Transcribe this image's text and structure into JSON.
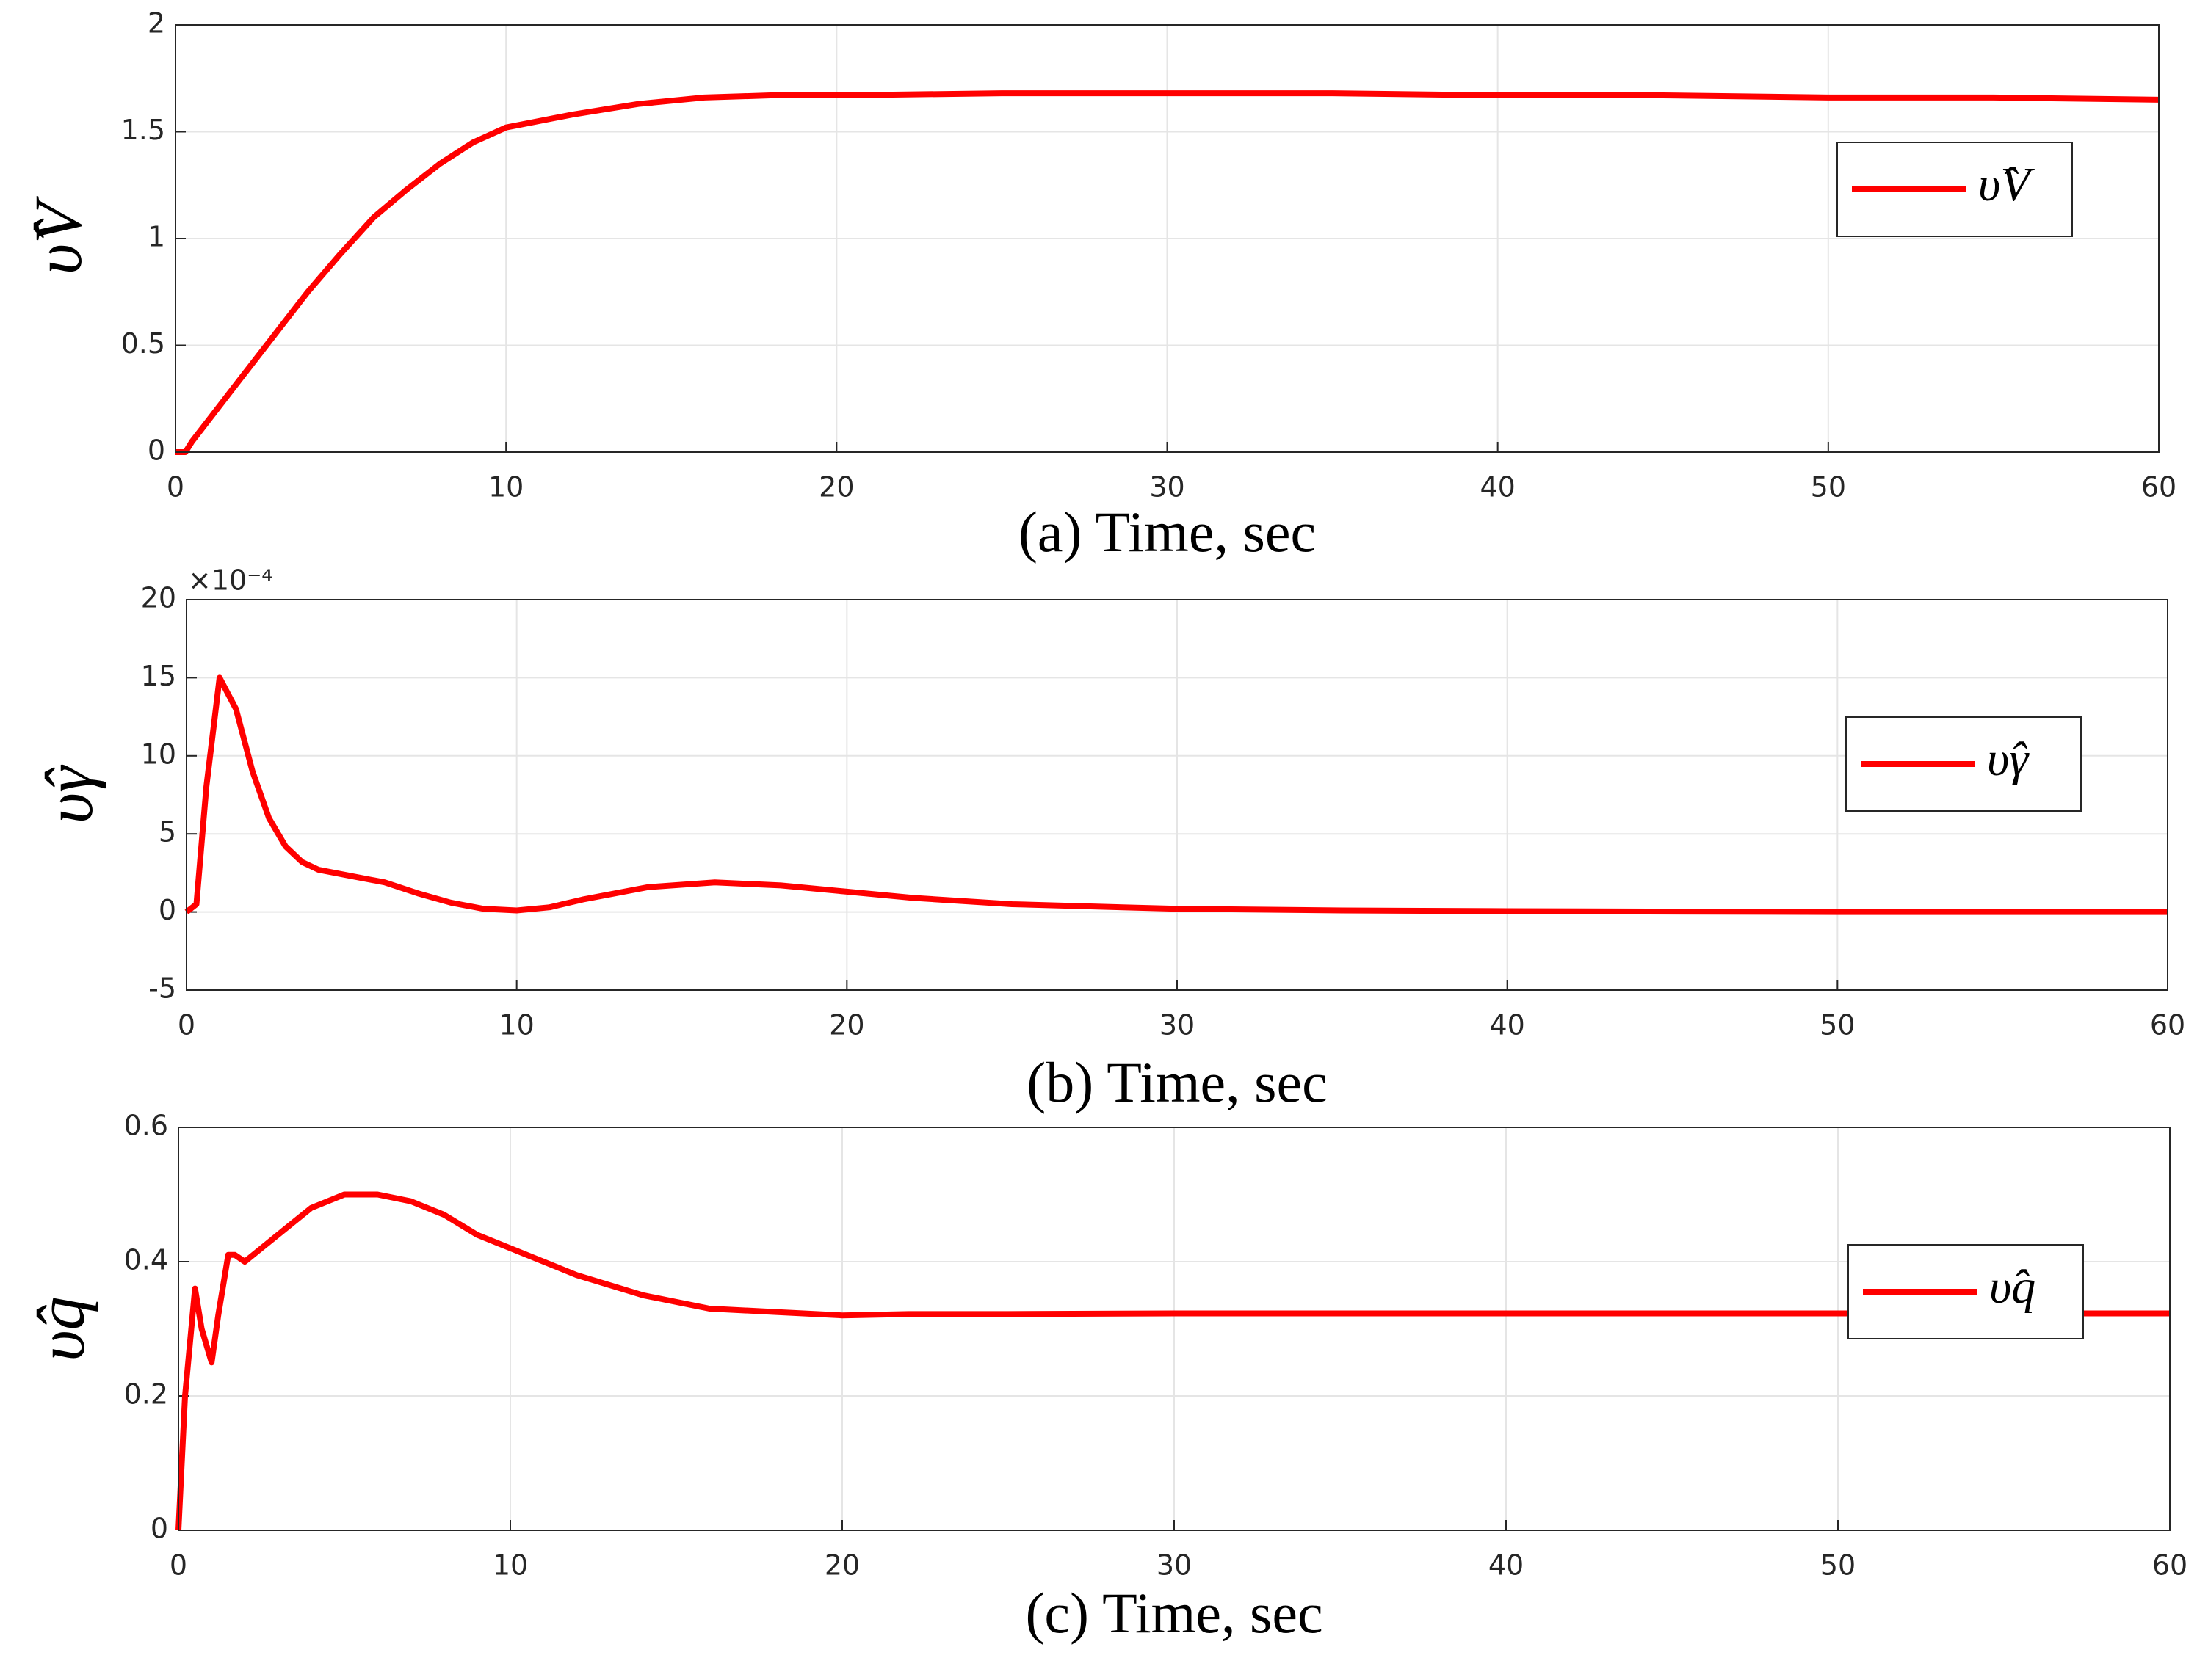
{
  "chart_data": [
    {
      "type": "line",
      "xlabel": "(a) Time, sec",
      "ylabel": "υ̂V",
      "x": [
        0,
        0.3,
        0.5,
        1,
        2,
        3,
        4,
        5,
        6,
        7,
        8,
        9,
        10,
        12,
        14,
        16,
        18,
        20,
        25,
        30,
        35,
        40,
        45,
        50,
        55,
        60
      ],
      "series": [
        {
          "name": "υ̂V",
          "color": "#ff0000",
          "values": [
            0,
            0,
            0.05,
            0.15,
            0.35,
            0.55,
            0.75,
            0.93,
            1.1,
            1.23,
            1.35,
            1.45,
            1.52,
            1.58,
            1.63,
            1.66,
            1.67,
            1.67,
            1.68,
            1.68,
            1.68,
            1.67,
            1.67,
            1.66,
            1.66,
            1.65
          ]
        }
      ],
      "xlim": [
        0,
        60
      ],
      "ylim": [
        0,
        2
      ],
      "xticks": [
        0,
        10,
        20,
        30,
        40,
        50,
        60
      ],
      "yticks": [
        0,
        0.5,
        1,
        1.5,
        2
      ],
      "grid": true,
      "legend": "upper right"
    },
    {
      "type": "line",
      "xlabel": "(b) Time, sec",
      "ylabel": "υ̂γ",
      "exponent": "×10⁻⁴",
      "x": [
        0,
        0.3,
        0.6,
        1,
        1.5,
        2,
        2.5,
        3,
        3.5,
        4,
        5,
        6,
        7,
        8,
        9,
        10,
        11,
        12,
        14,
        16,
        18,
        20,
        22,
        25,
        30,
        35,
        40,
        50,
        60
      ],
      "series": [
        {
          "name": "υ̂γ",
          "color": "#ff0000",
          "values": [
            0,
            0.5,
            8,
            15,
            13,
            9,
            6,
            4.2,
            3.2,
            2.7,
            2.3,
            1.9,
            1.2,
            0.6,
            0.2,
            0.1,
            0.3,
            0.8,
            1.6,
            1.9,
            1.7,
            1.3,
            0.9,
            0.5,
            0.2,
            0.1,
            0.05,
            0,
            0
          ]
        }
      ],
      "xlim": [
        0,
        60
      ],
      "ylim": [
        -5,
        20
      ],
      "xticks": [
        0,
        10,
        20,
        30,
        40,
        50,
        60
      ],
      "yticks": [
        -5,
        0,
        5,
        10,
        15,
        20
      ],
      "grid": true,
      "legend": "upper right"
    },
    {
      "type": "line",
      "xlabel": "(c) Time, sec",
      "ylabel": "υ̂q",
      "x": [
        0,
        0.2,
        0.5,
        0.7,
        1,
        1.2,
        1.5,
        1.7,
        2,
        2.5,
        3,
        4,
        5,
        6,
        7,
        8,
        9,
        10,
        12,
        14,
        16,
        18,
        20,
        22,
        25,
        30,
        40,
        50,
        60
      ],
      "series": [
        {
          "name": "υ̂q",
          "color": "#ff0000",
          "values": [
            0,
            0.2,
            0.36,
            0.3,
            0.25,
            0.32,
            0.41,
            0.41,
            0.4,
            0.42,
            0.44,
            0.48,
            0.5,
            0.5,
            0.49,
            0.47,
            0.44,
            0.42,
            0.38,
            0.35,
            0.33,
            0.325,
            0.32,
            0.322,
            0.322,
            0.323,
            0.323,
            0.323,
            0.323
          ]
        }
      ],
      "xlim": [
        0,
        60
      ],
      "ylim": [
        0,
        0.6
      ],
      "xticks": [
        0,
        10,
        20,
        30,
        40,
        50,
        60
      ],
      "yticks": [
        0,
        0.2,
        0.4,
        0.6
      ],
      "grid": true,
      "legend": "upper right"
    }
  ]
}
